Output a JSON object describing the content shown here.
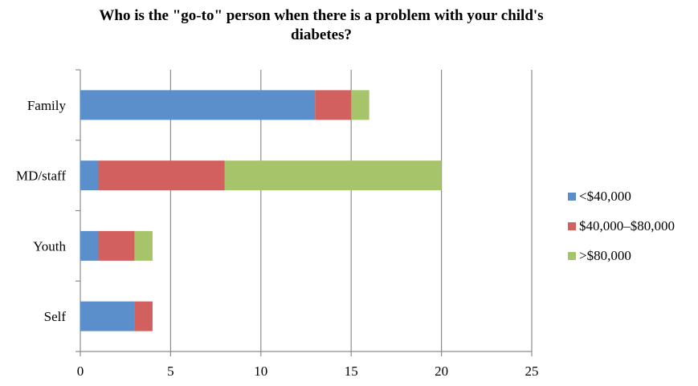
{
  "chart_data": {
    "type": "bar",
    "orientation": "horizontal",
    "stacked": true,
    "title_lines": [
      "Who is the \"go-to\" person when there is a problem with your child's",
      "diabetes?"
    ],
    "categories": [
      "Family",
      "MD/staff",
      "Youth",
      "Self"
    ],
    "series": [
      {
        "name": "<$40,000",
        "color": "#5b8fcb",
        "values": [
          13,
          1,
          1,
          3
        ]
      },
      {
        "name": "$40,000–$80,000",
        "color": "#d1605e",
        "values": [
          2,
          7,
          2,
          1
        ]
      },
      {
        "name": ">$80,000",
        "color": "#a6c46a",
        "values": [
          1,
          12,
          1,
          0
        ]
      }
    ],
    "xlim": [
      0,
      25
    ],
    "xticks": [
      "0",
      "5",
      "10",
      "15",
      "20",
      "25"
    ],
    "grid": true,
    "legend_position": "right",
    "xlabel": "",
    "ylabel": ""
  }
}
